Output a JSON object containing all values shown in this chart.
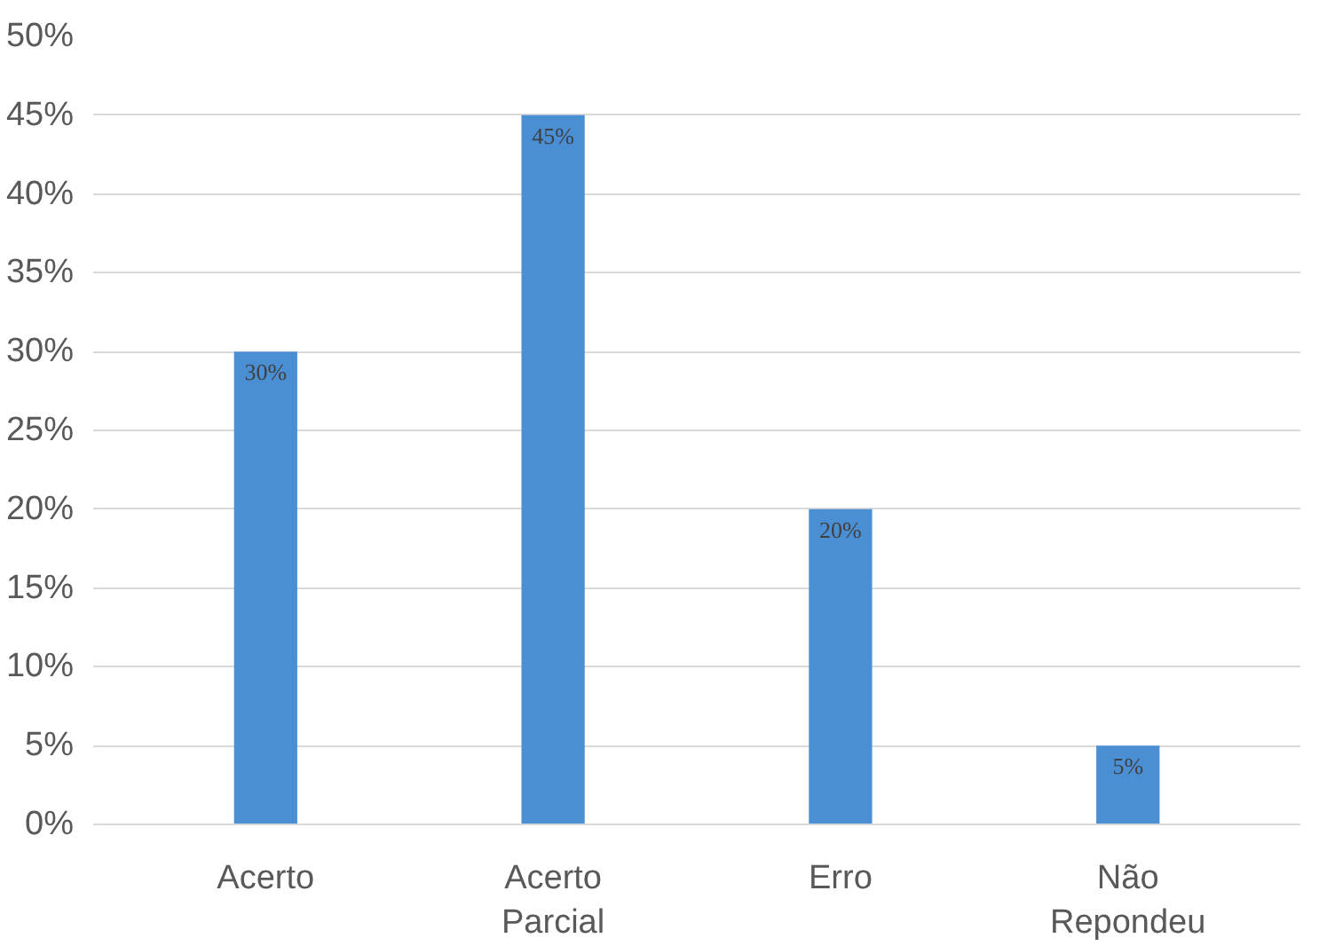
{
  "chart_data": {
    "type": "bar",
    "categories": [
      "Acerto",
      "Acerto Parcial",
      "Erro",
      "Não Repondeu"
    ],
    "values": [
      30,
      45,
      20,
      5
    ],
    "color": "#4a8fd4",
    "value_labels": [
      "30%",
      "45%",
      "20%",
      "5%"
    ],
    "ylim": [
      0,
      50
    ],
    "yticks": [
      {
        "value": 0,
        "label": "0%"
      },
      {
        "value": 5,
        "label": "5%"
      },
      {
        "value": 10,
        "label": "10%"
      },
      {
        "value": 15,
        "label": "15%"
      },
      {
        "value": 20,
        "label": "20%"
      },
      {
        "value": 25,
        "label": "25%"
      },
      {
        "value": 30,
        "label": "30%"
      },
      {
        "value": 35,
        "label": "35%"
      },
      {
        "value": 40,
        "label": "40%"
      },
      {
        "value": 45,
        "label": "45%"
      },
      {
        "value": 50,
        "label": "50%"
      }
    ],
    "grid": "y"
  }
}
